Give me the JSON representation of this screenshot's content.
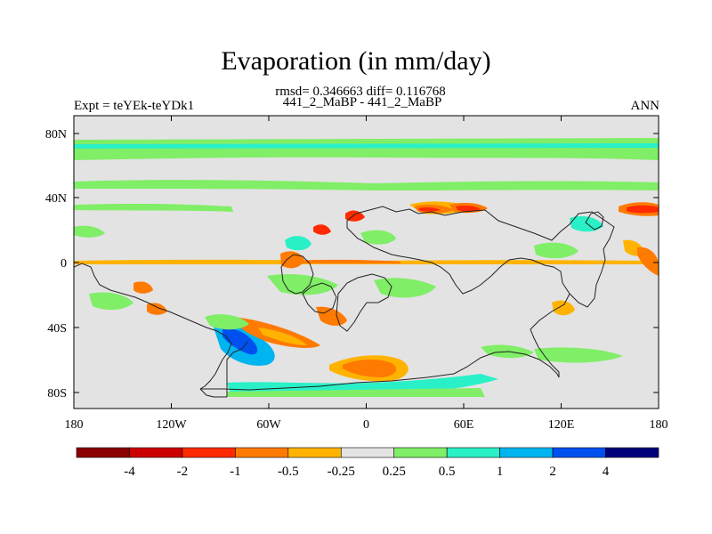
{
  "header": {
    "title": "Evaporation (in mm/day)",
    "stats_line": "rmsd= 0.346663 diff= 0.116768",
    "case_line": "441_2_MaBP - 441_2_MaBP",
    "expt_label": "Expt = teYEk-teYDk1",
    "season_label": "ANN"
  },
  "map": {
    "lat_ticks": [
      "80N",
      "40N",
      "0",
      "40S",
      "80S"
    ],
    "lon_ticks": [
      "180",
      "120W",
      "60W",
      "0",
      "60E",
      "120E",
      "180"
    ],
    "background_color": "#e3e3e3"
  },
  "colorbar": {
    "colors": [
      "#8b0000",
      "#cc0000",
      "#ff2a00",
      "#ff7a00",
      "#ffb300",
      "#e3e3e3",
      "#80ee66",
      "#2af0c8",
      "#00b4f0",
      "#0050f0",
      "#00007a"
    ],
    "labels": [
      "-4",
      "-2",
      "-1",
      "-0.5",
      "-0.25",
      "0.25",
      "0.5",
      "1",
      "2",
      "4"
    ]
  }
}
